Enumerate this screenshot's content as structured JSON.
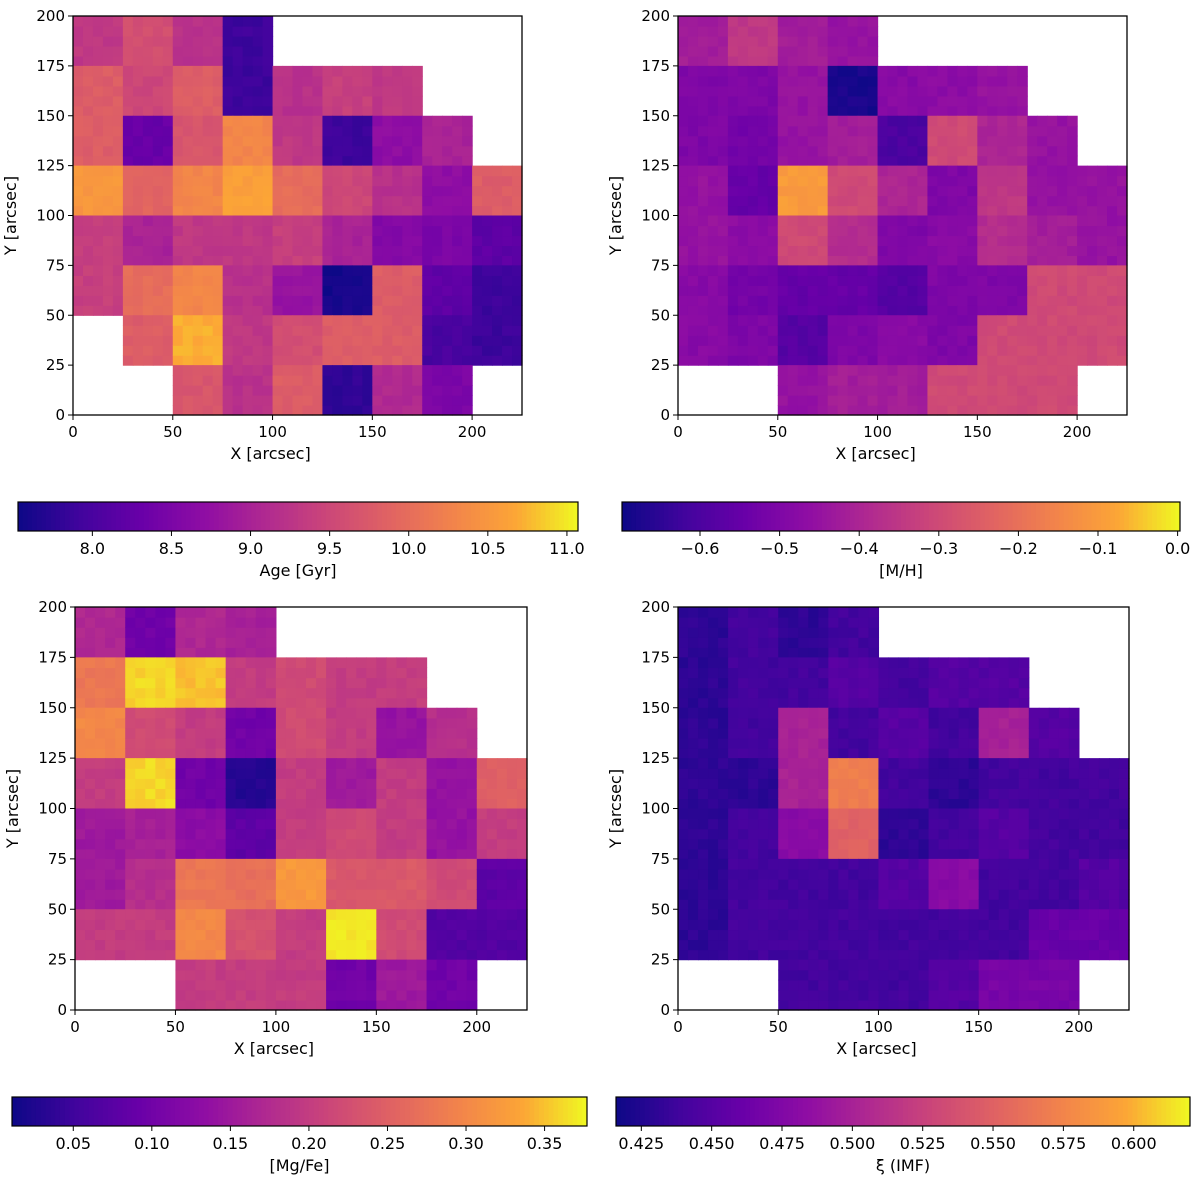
{
  "colormap": "plasma",
  "colormap_stops": [
    "#0d0887",
    "#41049d",
    "#6a00a8",
    "#8f0da4",
    "#b12a90",
    "#cc4778",
    "#e16462",
    "#f2844b",
    "#fca636",
    "#f0f921"
  ],
  "chart_data": [
    {
      "type": "heatmap",
      "panel": "top-left",
      "xlabel": "X [arcsec]",
      "ylabel": "Y [arcsec]",
      "xlim": [
        0,
        225
      ],
      "ylim": [
        0,
        200
      ],
      "xticks": [
        0,
        50,
        100,
        150,
        200
      ],
      "yticks": [
        0,
        25,
        50,
        75,
        100,
        125,
        150,
        175,
        200
      ],
      "bin_size": 25,
      "x_bin_centers": [
        12.5,
        37.5,
        62.5,
        87.5,
        112.5,
        137.5,
        162.5,
        187.5,
        212.5
      ],
      "y_bin_centers_top_to_bottom": [
        187.5,
        162.5,
        137.5,
        112.5,
        87.5,
        62.5,
        37.5,
        12.5
      ],
      "values": [
        [
          9.3,
          9.6,
          9.2,
          7.9,
          null,
          null,
          null,
          null,
          null
        ],
        [
          9.8,
          9.5,
          9.8,
          7.9,
          9.2,
          9.4,
          9.3,
          null,
          null
        ],
        [
          9.8,
          8.3,
          9.7,
          10.3,
          9.3,
          7.9,
          8.7,
          9.0,
          null
        ],
        [
          10.5,
          9.9,
          10.3,
          10.6,
          10.0,
          9.5,
          9.2,
          8.7,
          9.8
        ],
        [
          9.4,
          9.0,
          9.3,
          9.3,
          9.4,
          9.0,
          8.6,
          8.5,
          8.2
        ],
        [
          9.4,
          10.0,
          10.3,
          9.2,
          8.8,
          7.6,
          9.8,
          8.2,
          7.9
        ],
        [
          null,
          9.8,
          10.7,
          9.3,
          9.6,
          9.8,
          9.8,
          8.0,
          7.9
        ],
        [
          null,
          null,
          9.7,
          9.2,
          9.8,
          7.8,
          9.1,
          8.5,
          null
        ]
      ],
      "colorbar": {
        "label": "Age [Gyr]",
        "range": [
          7.53,
          11.07
        ],
        "ticks": [
          "8.0",
          "8.5",
          "9.0",
          "9.5",
          "10.0",
          "10.5",
          "11.0"
        ]
      }
    },
    {
      "type": "heatmap",
      "panel": "top-right",
      "xlabel": "X [arcsec]",
      "ylabel": "Y [arcsec]",
      "xlim": [
        0,
        225
      ],
      "ylim": [
        0,
        200
      ],
      "xticks": [
        0,
        50,
        100,
        150,
        200
      ],
      "yticks": [
        0,
        25,
        50,
        75,
        100,
        125,
        150,
        175,
        200
      ],
      "bin_size": 25,
      "values": [
        [
          -0.42,
          -0.35,
          -0.42,
          -0.45,
          null,
          null,
          null,
          null,
          null
        ],
        [
          -0.5,
          -0.5,
          -0.45,
          -0.68,
          -0.48,
          -0.47,
          -0.45,
          null,
          null
        ],
        [
          -0.5,
          -0.52,
          -0.45,
          -0.42,
          -0.6,
          -0.3,
          -0.4,
          -0.45,
          null
        ],
        [
          -0.45,
          -0.55,
          -0.1,
          -0.3,
          -0.4,
          -0.5,
          -0.35,
          -0.45,
          -0.45
        ],
        [
          -0.45,
          -0.47,
          -0.3,
          -0.38,
          -0.5,
          -0.48,
          -0.38,
          -0.42,
          -0.45
        ],
        [
          -0.48,
          -0.52,
          -0.55,
          -0.55,
          -0.58,
          -0.5,
          -0.5,
          -0.3,
          -0.3
        ],
        [
          -0.48,
          -0.5,
          -0.58,
          -0.5,
          -0.48,
          -0.5,
          -0.3,
          -0.3,
          -0.3
        ],
        [
          null,
          null,
          -0.45,
          -0.42,
          -0.42,
          -0.3,
          -0.3,
          -0.3,
          null
        ]
      ],
      "colorbar": {
        "label": "[M/H]",
        "range": [
          -0.698,
          0.003
        ],
        "ticks": [
          "−0.6",
          "−0.5",
          "−0.4",
          "−0.3",
          "−0.2",
          "−0.1",
          "0.0"
        ]
      }
    },
    {
      "type": "heatmap",
      "panel": "bottom-left",
      "xlabel": "X [arcsec]",
      "ylabel": "Y [arcsec]",
      "xlim": [
        0,
        225
      ],
      "ylim": [
        0,
        200
      ],
      "xticks": [
        0,
        50,
        100,
        150,
        200
      ],
      "yticks": [
        0,
        25,
        50,
        75,
        100,
        125,
        150,
        175,
        200
      ],
      "bin_size": 25,
      "values": [
        [
          0.17,
          0.1,
          0.17,
          0.16,
          null,
          null,
          null,
          null,
          null
        ],
        [
          0.28,
          0.36,
          0.35,
          0.2,
          0.22,
          0.2,
          0.2,
          null,
          null
        ],
        [
          0.3,
          0.22,
          0.2,
          0.1,
          0.22,
          0.2,
          0.14,
          0.18,
          null
        ],
        [
          0.2,
          0.36,
          0.1,
          0.03,
          0.2,
          0.15,
          0.2,
          0.14,
          0.25
        ],
        [
          0.15,
          0.16,
          0.13,
          0.08,
          0.2,
          0.22,
          0.2,
          0.14,
          0.2
        ],
        [
          0.15,
          0.18,
          0.28,
          0.27,
          0.32,
          0.24,
          0.24,
          0.22,
          0.08
        ],
        [
          0.2,
          0.2,
          0.3,
          0.23,
          0.2,
          0.37,
          0.22,
          0.07,
          0.07
        ],
        [
          null,
          null,
          0.2,
          0.2,
          0.2,
          0.1,
          0.15,
          0.1,
          null
        ]
      ],
      "colorbar": {
        "label": "[Mg/Fe]",
        "range": [
          0.011,
          0.377
        ],
        "ticks": [
          "0.05",
          "0.10",
          "0.15",
          "0.20",
          "0.25",
          "0.30",
          "0.35"
        ]
      }
    },
    {
      "type": "heatmap",
      "panel": "bottom-right",
      "xlabel": "X [arcsec]",
      "ylabel": "Y [arcsec]",
      "xlim": [
        0,
        225
      ],
      "ylim": [
        0,
        200
      ],
      "xticks": [
        0,
        50,
        100,
        150,
        200
      ],
      "yticks": [
        0,
        25,
        50,
        75,
        100,
        125,
        150,
        175,
        200
      ],
      "bin_size": 25,
      "values": [
        [
          0.43,
          0.44,
          0.43,
          0.44,
          null,
          null,
          null,
          null,
          null
        ],
        [
          0.43,
          0.44,
          0.44,
          0.45,
          0.44,
          0.45,
          0.45,
          null,
          null
        ],
        [
          0.43,
          0.44,
          0.5,
          0.44,
          0.45,
          0.44,
          0.5,
          0.45,
          null
        ],
        [
          0.43,
          0.43,
          0.5,
          0.57,
          0.44,
          0.43,
          0.44,
          0.44,
          0.44
        ],
        [
          0.43,
          0.44,
          0.48,
          0.55,
          0.43,
          0.44,
          0.45,
          0.44,
          0.44
        ],
        [
          0.43,
          0.44,
          0.44,
          0.44,
          0.45,
          0.48,
          0.44,
          0.44,
          0.45
        ],
        [
          0.43,
          0.44,
          0.44,
          0.44,
          0.44,
          0.44,
          0.44,
          0.46,
          0.46
        ],
        [
          null,
          null,
          0.44,
          0.44,
          0.44,
          0.45,
          0.47,
          0.47,
          null
        ]
      ],
      "colorbar": {
        "label": "ξ (IMF)",
        "range": [
          0.416,
          0.62
        ],
        "ticks": [
          "0.425",
          "0.450",
          "0.475",
          "0.500",
          "0.525",
          "0.550",
          "0.575",
          "0.600"
        ]
      }
    }
  ]
}
